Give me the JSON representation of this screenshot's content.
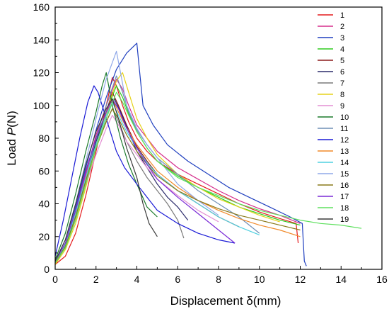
{
  "chart_data": {
    "type": "line",
    "xlabel": "Displacement  δ(mm)",
    "ylabel_prefix": "Load ",
    "ylabel_var": "P",
    "ylabel_unit": "(N)",
    "xlim": [
      0,
      16
    ],
    "ylim": [
      0,
      160
    ],
    "xticks": [
      0,
      2,
      4,
      6,
      8,
      10,
      12,
      14,
      16
    ],
    "yticks": [
      0,
      20,
      40,
      60,
      80,
      100,
      120,
      140,
      160
    ],
    "legend_position": "top-right",
    "grid": false,
    "series": [
      {
        "name": "1",
        "color": "#e41a1c",
        "x": [
          0,
          0.5,
          1,
          1.5,
          2,
          2.5,
          2.8,
          3.0,
          3.3,
          3.6,
          4.0,
          4.5,
          5,
          6,
          7,
          8,
          9,
          10,
          11,
          11.8,
          11.9
        ],
        "y": [
          3,
          8,
          22,
          45,
          72,
          100,
          117,
          112,
          100,
          90,
          80,
          72,
          66,
          58,
          52,
          46,
          40,
          35,
          31,
          28,
          16
        ]
      },
      {
        "name": "2",
        "color": "#d52f8c",
        "x": [
          0,
          0.5,
          1,
          1.5,
          2,
          2.5,
          3.0,
          3.3,
          3.6,
          4,
          5,
          6,
          7,
          8,
          9,
          10,
          11,
          12
        ],
        "y": [
          5,
          15,
          33,
          58,
          82,
          100,
          116,
          110,
          100,
          88,
          72,
          62,
          55,
          48,
          42,
          37,
          33,
          28
        ]
      },
      {
        "name": "3",
        "color": "#1f3fbf",
        "x": [
          0,
          0.5,
          1,
          1.5,
          2,
          2.5,
          3.0,
          3.5,
          4.0,
          4.1,
          4.3,
          4.8,
          5.5,
          6.5,
          7.5,
          8.5,
          9.5,
          10.5,
          11.5,
          12.1,
          12.2,
          12.3
        ],
        "y": [
          5,
          18,
          38,
          62,
          85,
          105,
          122,
          132,
          138,
          125,
          100,
          88,
          76,
          66,
          58,
          50,
          44,
          38,
          32,
          28,
          5,
          2
        ]
      },
      {
        "name": "4",
        "color": "#2ecc1f",
        "x": [
          0,
          0.5,
          1,
          1.5,
          2,
          2.5,
          3.0,
          3.3,
          3.6,
          4.0,
          4.5,
          5,
          6,
          7,
          8,
          9,
          10,
          11,
          12
        ],
        "y": [
          4,
          15,
          33,
          55,
          78,
          96,
          112,
          105,
          95,
          84,
          74,
          66,
          57,
          50,
          44,
          38,
          34,
          30,
          27
        ]
      },
      {
        "name": "5",
        "color": "#8b1a1a",
        "x": [
          0,
          0.5,
          1,
          1.5,
          2,
          2.5,
          2.8,
          3.1,
          3.5,
          4,
          4.5,
          5,
          6,
          7,
          8,
          9
        ],
        "y": [
          4,
          16,
          36,
          60,
          80,
          96,
          108,
          100,
          88,
          75,
          66,
          58,
          48,
          40,
          32,
          26
        ]
      },
      {
        "name": "6",
        "color": "#2a2a6a",
        "x": [
          0,
          0.5,
          1,
          1.5,
          2,
          2.5,
          2.9,
          3.2,
          3.6,
          4,
          4.5,
          5,
          5.5,
          6,
          6.5
        ],
        "y": [
          3,
          14,
          33,
          56,
          78,
          94,
          104,
          96,
          84,
          72,
          62,
          52,
          44,
          38,
          30
        ]
      },
      {
        "name": "7",
        "color": "#7a7a7a",
        "x": [
          0,
          0.5,
          1,
          1.5,
          2,
          2.5,
          2.8,
          3.1,
          3.5,
          4,
          4.5,
          5,
          5.5,
          6,
          6.3
        ],
        "y": [
          5,
          16,
          35,
          56,
          75,
          90,
          98,
          90,
          78,
          66,
          56,
          48,
          40,
          30,
          19
        ]
      },
      {
        "name": "8",
        "color": "#e6d21a",
        "x": [
          0,
          0.5,
          1,
          1.5,
          2,
          2.5,
          3.0,
          3.3,
          3.6,
          4,
          4.5,
          5,
          6,
          7,
          8,
          9,
          10,
          11
        ],
        "y": [
          3,
          12,
          28,
          50,
          74,
          95,
          115,
          120,
          108,
          92,
          80,
          70,
          58,
          50,
          43,
          38,
          33,
          29
        ]
      },
      {
        "name": "9",
        "color": "#e38fd3",
        "x": [
          0,
          0.5,
          1,
          1.5,
          2,
          2.5,
          2.8,
          3.1,
          3.5,
          4,
          4.5,
          5,
          6,
          7,
          8
        ],
        "y": [
          4,
          14,
          32,
          52,
          70,
          86,
          94,
          88,
          78,
          70,
          62,
          55,
          45,
          36,
          29
        ]
      },
      {
        "name": "10",
        "color": "#1a7a2a",
        "x": [
          0,
          0.5,
          1,
          1.5,
          2,
          2.3,
          2.5,
          2.8,
          3.2,
          3.6,
          4,
          4.5,
          5
        ],
        "y": [
          6,
          22,
          46,
          72,
          96,
          112,
          120,
          100,
          80,
          64,
          52,
          38,
          32
        ]
      },
      {
        "name": "11",
        "color": "#6f8fb5",
        "x": [
          0,
          0.5,
          1,
          1.5,
          2,
          2.5,
          3.0,
          3.3,
          3.6,
          4,
          4.5,
          5,
          6,
          7,
          8,
          9,
          10
        ],
        "y": [
          4,
          14,
          32,
          56,
          80,
          100,
          118,
          108,
          96,
          85,
          76,
          68,
          58,
          48,
          40,
          32,
          22
        ]
      },
      {
        "name": "12",
        "color": "#1a1ad6",
        "x": [
          0,
          0.4,
          0.8,
          1.2,
          1.6,
          1.9,
          2.1,
          2.4,
          2.7,
          3.0,
          3.4,
          4,
          4.5,
          5,
          6,
          7,
          8,
          8.8
        ],
        "y": [
          8,
          30,
          55,
          80,
          102,
          112,
          108,
          96,
          84,
          72,
          62,
          52,
          44,
          36,
          28,
          22,
          18,
          16
        ]
      },
      {
        "name": "13",
        "color": "#f08a2a",
        "x": [
          0,
          0.5,
          1,
          1.5,
          2,
          2.5,
          2.8,
          3.1,
          3.5,
          4,
          4.5,
          5,
          6,
          7,
          8,
          9,
          10,
          11,
          12
        ],
        "y": [
          4,
          14,
          32,
          54,
          76,
          94,
          104,
          96,
          86,
          76,
          68,
          60,
          50,
          42,
          36,
          31,
          27,
          24,
          20
        ]
      },
      {
        "name": "14",
        "color": "#4fd0e0",
        "x": [
          0,
          0.5,
          1,
          1.5,
          2,
          2.5,
          2.8,
          3.1,
          3.5,
          4,
          4.5,
          5,
          6,
          7,
          8,
          9,
          10
        ],
        "y": [
          4,
          15,
          34,
          56,
          76,
          94,
          102,
          94,
          84,
          74,
          65,
          58,
          48,
          40,
          32,
          26,
          21
        ]
      },
      {
        "name": "15",
        "color": "#8fa8e8",
        "x": [
          0,
          0.5,
          1,
          1.5,
          2,
          2.5,
          3.0,
          3.2,
          3.5,
          4,
          4.5,
          5,
          5.5,
          6,
          7,
          8
        ],
        "y": [
          5,
          18,
          40,
          66,
          92,
          116,
          133,
          120,
          100,
          86,
          76,
          68,
          60,
          52,
          42,
          33
        ]
      },
      {
        "name": "16",
        "color": "#8a7a1a",
        "x": [
          0,
          0.5,
          1,
          1.5,
          2,
          2.5,
          2.8,
          3.1,
          3.5,
          4,
          4.5,
          5,
          6,
          7,
          8,
          9,
          10,
          11,
          12
        ],
        "y": [
          4,
          14,
          32,
          54,
          74,
          90,
          98,
          92,
          82,
          72,
          64,
          57,
          48,
          42,
          37,
          33,
          30,
          27,
          24
        ]
      },
      {
        "name": "17",
        "color": "#7a2ad6",
        "x": [
          0,
          0.5,
          1,
          1.5,
          2,
          2.5,
          2.8,
          3.1,
          3.5,
          4,
          4.5,
          5,
          6,
          7,
          8,
          8.8
        ],
        "y": [
          5,
          16,
          36,
          60,
          80,
          96,
          104,
          98,
          86,
          74,
          64,
          55,
          44,
          34,
          24,
          16
        ]
      },
      {
        "name": "18",
        "color": "#5ee05e",
        "x": [
          0,
          0.5,
          1,
          1.5,
          2,
          2.5,
          3.0,
          3.3,
          3.6,
          4,
          4.5,
          5,
          6,
          7,
          8,
          9,
          10,
          11,
          12,
          13,
          14,
          15
        ],
        "y": [
          4,
          13,
          30,
          52,
          74,
          92,
          108,
          102,
          94,
          84,
          74,
          66,
          56,
          50,
          45,
          40,
          36,
          33,
          30,
          28,
          27,
          25
        ]
      },
      {
        "name": "19",
        "color": "#3a3a3a",
        "x": [
          0,
          0.5,
          1,
          1.5,
          2,
          2.5,
          2.8,
          3.1,
          3.5,
          4,
          4.3,
          4.6,
          5
        ],
        "y": [
          5,
          18,
          40,
          64,
          84,
          98,
          104,
          92,
          74,
          56,
          40,
          28,
          20
        ]
      }
    ]
  }
}
